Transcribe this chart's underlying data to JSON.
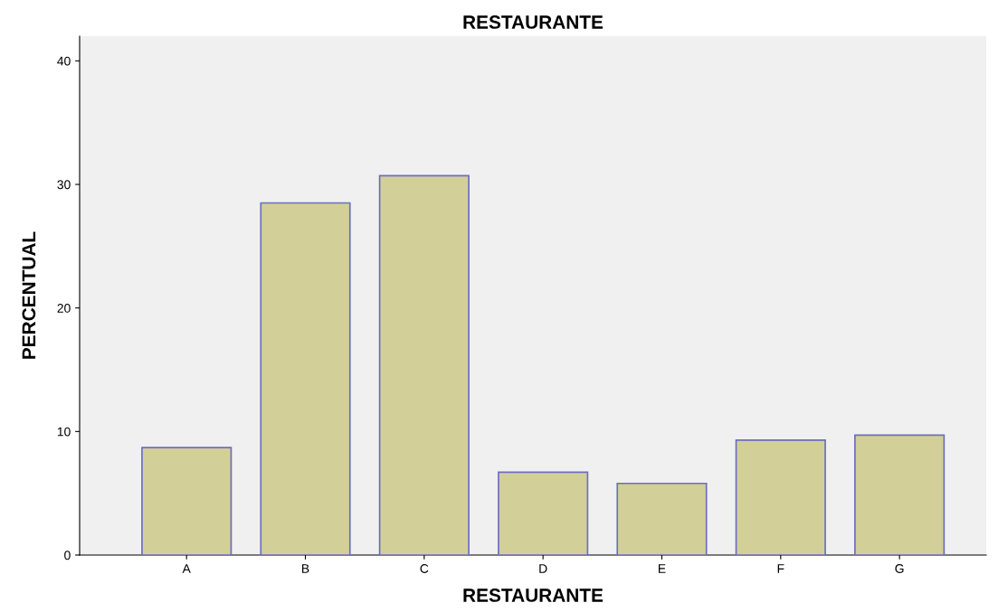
{
  "chart_data": {
    "type": "bar",
    "title": "RESTAURANTE",
    "xlabel": "RESTAURANTE",
    "ylabel": "PERCENTUAL",
    "categories": [
      "A",
      "B",
      "C",
      "D",
      "E",
      "F",
      "G"
    ],
    "values": [
      8.7,
      28.5,
      30.7,
      6.7,
      5.8,
      9.3,
      9.7
    ],
    "color": "#d3cf98",
    "ylim": [
      0,
      42
    ],
    "yticks": [
      0,
      10,
      20,
      30,
      40
    ],
    "grid": false,
    "legend": false
  }
}
